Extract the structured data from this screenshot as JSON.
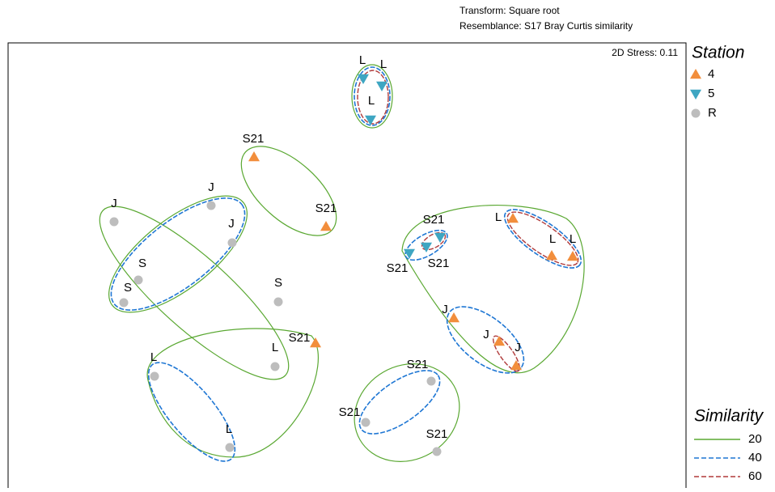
{
  "chart_data": {
    "type": "scatter",
    "subtitle_lines": [
      "Transform: Square root",
      "Resemblance: S17 Bray Curtis similarity"
    ],
    "annotation": "2D Stress: 0.11",
    "xlim": [
      0,
      838
    ],
    "ylim": [
      0,
      550
    ],
    "legend_title": "Station",
    "series": [
      {
        "name": "4",
        "color": "#f28e3c",
        "marker": "triangle-up",
        "x": [
          304,
          393,
          380,
          624,
          672,
          698,
          551,
          607,
          628
        ],
        "y": [
          409,
          323,
          179,
          333,
          287,
          286,
          210,
          181,
          151
        ],
        "labels": [
          "S21",
          "S21",
          "S21",
          "L",
          "L",
          "L",
          "J",
          "J",
          "J"
        ]
      },
      {
        "name": "5",
        "color": "#3ea6c2",
        "marker": "triangle-down",
        "x": [
          439,
          462,
          448,
          534,
          517,
          496
        ],
        "y": [
          506,
          497,
          455,
          310,
          298,
          290
        ],
        "labels": [
          "L",
          "L",
          "L",
          "S21",
          "S21",
          "S21"
        ]
      },
      {
        "name": "R",
        "color": "#bdbdbd",
        "marker": "circle",
        "x": [
          131,
          251,
          277,
          161,
          143,
          334,
          330,
          181,
          274,
          523,
          442,
          530
        ],
        "y": [
          329,
          349,
          303,
          257,
          229,
          230,
          150,
          138,
          50,
          132,
          81,
          45
        ],
        "labels": [
          "J",
          "J",
          "J",
          "S",
          "S",
          "S",
          "L",
          "L",
          "L",
          "S21",
          "S21",
          "S21"
        ]
      }
    ],
    "similarity": {
      "title": "Similarity",
      "levels": [
        {
          "value": 20,
          "color": "#5aa832",
          "dash": "none"
        },
        {
          "value": 40,
          "color": "#1f77d4",
          "dash": "6 3"
        },
        {
          "value": 60,
          "color": "#b03a3a",
          "dash": "6 3"
        }
      ]
    }
  }
}
